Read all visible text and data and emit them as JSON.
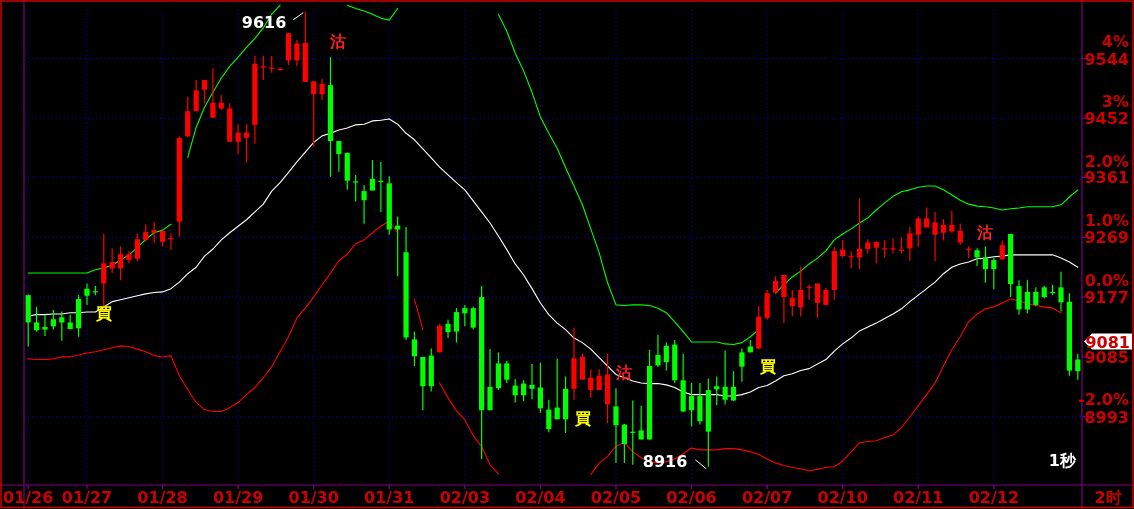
{
  "chart_data": {
    "type": "candlestick",
    "grid": true,
    "categories": [
      "01/26",
      null,
      null,
      null,
      null,
      null,
      null,
      "01/27",
      null,
      null,
      null,
      null,
      null,
      null,
      null,
      null,
      "01/28",
      null,
      null,
      null,
      null,
      null,
      null,
      null,
      null,
      "01/29",
      null,
      null,
      null,
      null,
      null,
      null,
      null,
      null,
      "01/30",
      null,
      null,
      null,
      null,
      null,
      null,
      null,
      null,
      "01/31",
      null,
      null,
      null,
      null,
      null,
      null,
      null,
      null,
      "02/03",
      null,
      null,
      null,
      null,
      null,
      null,
      null,
      null,
      "02/04",
      null,
      null,
      null,
      null,
      null,
      null,
      null,
      null,
      "02/05",
      null,
      null,
      null,
      null,
      null,
      null,
      null,
      null,
      "02/06",
      null,
      null,
      null,
      null,
      null,
      null,
      null,
      null,
      "02/07",
      null,
      null,
      null,
      null,
      null,
      null,
      null,
      null,
      "02/10",
      null,
      null,
      null,
      null,
      null,
      null,
      null,
      null,
      "02/11",
      null,
      null,
      null,
      null,
      null,
      null,
      null,
      null,
      "02/12",
      null,
      null,
      null,
      null,
      null,
      null,
      null,
      null,
      null,
      null
    ],
    "ohlc": [
      [
        9180,
        9181,
        9101,
        9138
      ],
      [
        9138,
        9162,
        9124,
        9126
      ],
      [
        9131,
        9150,
        9117,
        9127
      ],
      [
        9143,
        9157,
        9127,
        9132
      ],
      [
        9146,
        9155,
        9110,
        9138
      ],
      [
        9138,
        9150,
        9127,
        9128
      ],
      [
        9174,
        9180,
        9116,
        9129
      ],
      [
        9190,
        9198,
        9165,
        9179
      ],
      [
        9185,
        9194,
        9180,
        9186
      ],
      [
        9198,
        9275,
        9150,
        9229
      ],
      [
        9221,
        9252,
        9214,
        9231
      ],
      [
        9221,
        9255,
        9203,
        9243
      ],
      [
        9234,
        9248,
        9229,
        9243
      ],
      [
        9236,
        9275,
        9232,
        9266
      ],
      [
        9265,
        9289,
        9262,
        9277
      ],
      [
        9276,
        9293,
        9260,
        9280
      ],
      [
        9262,
        9279,
        9255,
        9279
      ],
      [
        9266,
        9275,
        9250,
        9268
      ],
      [
        9293,
        9424,
        9270,
        9422
      ],
      [
        9424,
        9485,
        9424,
        9463
      ],
      [
        9463,
        9511,
        9463,
        9495
      ],
      [
        9496,
        9511,
        9475,
        9511
      ],
      [
        9453,
        9529,
        9453,
        9476
      ],
      [
        9467,
        9488,
        9465,
        9476
      ],
      [
        9416,
        9475,
        9416,
        9467
      ],
      [
        9416,
        9443,
        9397,
        9430
      ],
      [
        9422,
        9443,
        9384,
        9430
      ],
      [
        9442,
        9548,
        9413,
        9536
      ],
      [
        9530,
        9548,
        9511,
        9532
      ],
      [
        9529,
        9548,
        9522,
        9530
      ],
      [
        9527,
        9530,
        9525,
        9528
      ],
      [
        9541,
        9583,
        9534,
        9583
      ],
      [
        9541,
        9573,
        9532,
        9567
      ],
      [
        9508,
        9616,
        9508,
        9568
      ],
      [
        9489,
        9509,
        9409,
        9509
      ],
      [
        9489,
        9513,
        9480,
        9505
      ],
      [
        9503,
        9546,
        9362,
        9417
      ],
      [
        9417,
        9417,
        9370,
        9397
      ],
      [
        9399,
        9399,
        9342,
        9356
      ],
      [
        9355,
        9365,
        9324,
        9354
      ],
      [
        9340,
        9349,
        9290,
        9326
      ],
      [
        9359,
        9388,
        9341,
        9341
      ],
      [
        9356,
        9385,
        9308,
        9355
      ],
      [
        9352,
        9363,
        9273,
        9281
      ],
      [
        9287,
        9301,
        9209,
        9281
      ],
      [
        9246,
        9285,
        9111,
        9115
      ],
      [
        9112,
        9124,
        9071,
        9086
      ],
      [
        9085,
        9085,
        9003,
        9040
      ],
      [
        9087,
        9098,
        9032,
        9040
      ],
      [
        9092,
        9136,
        9092,
        9133
      ],
      [
        9136,
        9142,
        9114,
        9123
      ],
      [
        9154,
        9160,
        9107,
        9124
      ],
      [
        9160,
        9165,
        9132,
        9152
      ],
      [
        9160,
        9162,
        9127,
        9130
      ],
      [
        9177,
        9194,
        8928,
        9003
      ],
      [
        9039,
        9097,
        9003,
        9003
      ],
      [
        9075,
        9092,
        9034,
        9037
      ],
      [
        9075,
        9079,
        9045,
        9050
      ],
      [
        9041,
        9051,
        9015,
        9026
      ],
      [
        9044,
        9049,
        9017,
        9026
      ],
      [
        9042,
        9074,
        9020,
        9036
      ],
      [
        9038,
        9076,
        8999,
        9006
      ],
      [
        9004,
        9019,
        8969,
        8974
      ],
      [
        9007,
        9082,
        8989,
        8989
      ],
      [
        9036,
        9055,
        8968,
        8989
      ],
      [
        9036,
        9130,
        9019,
        9083
      ],
      [
        9050,
        9090,
        9050,
        9085
      ],
      [
        9034,
        9066,
        9022,
        9053
      ],
      [
        9034,
        9066,
        9034,
        9056
      ],
      [
        9012,
        9090,
        8983,
        9058
      ],
      [
        9009,
        9037,
        8922,
        8980
      ],
      [
        8981,
        8982,
        8922,
        8951
      ],
      [
        8970,
        9018,
        8919,
        8969
      ],
      [
        8972,
        9010,
        8958,
        8958
      ],
      [
        9071,
        9096,
        8958,
        8958
      ],
      [
        9088,
        9119,
        9070,
        9072
      ],
      [
        9102,
        9107,
        9064,
        9077
      ],
      [
        9104,
        9111,
        9045,
        9049
      ],
      [
        9049,
        9090,
        9001,
        9001
      ],
      [
        9025,
        9045,
        8978,
        9003
      ],
      [
        9025,
        9045,
        8981,
        8986
      ],
      [
        9034,
        9052,
        8916,
        8970
      ],
      [
        9040,
        9055,
        9011,
        9035
      ],
      [
        9039,
        9095,
        9012,
        9019
      ],
      [
        9039,
        9063,
        9017,
        9018
      ],
      [
        9092,
        9098,
        9047,
        9070
      ],
      [
        9101,
        9111,
        9092,
        9092
      ],
      [
        9098,
        9163,
        9098,
        9147
      ],
      [
        9145,
        9188,
        9142,
        9183
      ],
      [
        9184,
        9209,
        9183,
        9202
      ],
      [
        9177,
        9211,
        9137,
        9211
      ],
      [
        9163,
        9188,
        9147,
        9176
      ],
      [
        9161,
        9224,
        9147,
        9188
      ],
      [
        9192,
        9196,
        9173,
        9193
      ],
      [
        9168,
        9198,
        9145,
        9198
      ],
      [
        9165,
        9191,
        9165,
        9188
      ],
      [
        9188,
        9254,
        9173,
        9248
      ],
      [
        9240,
        9265,
        9238,
        9250
      ],
      [
        9239,
        9247,
        9221,
        9240
      ],
      [
        9238,
        9329,
        9220,
        9251
      ],
      [
        9251,
        9266,
        9244,
        9261
      ],
      [
        9253,
        9262,
        9229,
        9262
      ],
      [
        9251,
        9265,
        9238,
        9252
      ],
      [
        9251,
        9267,
        9244,
        9252
      ],
      [
        9249,
        9269,
        9244,
        9250
      ],
      [
        9252,
        9285,
        9233,
        9275
      ],
      [
        9273,
        9301,
        9255,
        9298
      ],
      [
        9284,
        9315,
        9284,
        9298
      ],
      [
        9273,
        9308,
        9232,
        9292
      ],
      [
        9276,
        9297,
        9264,
        9288
      ],
      [
        9278,
        9310,
        9276,
        9288
      ],
      [
        9261,
        9290,
        9257,
        9279
      ],
      [
        9250,
        9255,
        9237,
        9251
      ],
      [
        9249,
        9252,
        9225,
        9238
      ],
      [
        9238,
        9255,
        9199,
        9220
      ],
      [
        9234,
        9238,
        9189,
        9220
      ],
      [
        9235,
        9264,
        9235,
        9257
      ],
      [
        9274,
        9274,
        9177,
        9197
      ],
      [
        9194,
        9203,
        9150,
        9158
      ],
      [
        9185,
        9203,
        9152,
        9158
      ],
      [
        9185,
        9192,
        9163,
        9165
      ],
      [
        9192,
        9194,
        9175,
        9177
      ],
      [
        9185,
        9196,
        9180,
        9184
      ],
      [
        9192,
        9216,
        9155,
        9169
      ],
      [
        9170,
        9183,
        9056,
        9064
      ],
      [
        9081,
        9090,
        9050,
        9063
      ]
    ],
    "colors": [
      "#00ff00",
      "#00ff00",
      "#00ff00",
      "#00ff00",
      "#00ff00",
      "#00ff00",
      "#00ff00",
      "#00ff00",
      "#00ff00",
      "#ff0000",
      "#ff0000",
      "#ff0000",
      "#ff0000",
      "#ff0000",
      "#ff0000",
      "#ff0000",
      "#ff0000",
      "#ff0000",
      "#ff0000",
      "#ff0000",
      "#ff0000",
      "#ff0000",
      "#ff0000",
      "#ff0000",
      "#ff0000",
      "#ff0000",
      "#ff0000",
      "#ff0000",
      "#ff0000",
      "#ff0000",
      "#ff0000",
      "#ff0000",
      "#ff0000",
      "#ff0000",
      "#ff0000",
      "#ff0000",
      "#00ff00",
      "#00ff00",
      "#00ff00",
      "#00ff00",
      "#00ff00",
      "#00ff00",
      "#00ff00",
      "#00ff00",
      "#00ff00",
      "#00ff00",
      "#00ff00",
      "#00ff00",
      "#00ff00",
      "#ff0000",
      "#00ff00",
      "#00ff00",
      "#00ff00",
      "#00ff00",
      "#00ff00",
      "#00ff00",
      "#00ff00",
      "#00ff00",
      "#00ff00",
      "#00ff00",
      "#00ff00",
      "#00ff00",
      "#00ff00",
      "#00ff00",
      "#00ff00",
      "#ff0000",
      "#ff0000",
      "#ff0000",
      "#ff0000",
      "#ff0000",
      "#00ff00",
      "#00ff00",
      "#00ff00",
      "#00ff00",
      "#00ff00",
      "#00ff00",
      "#00ff00",
      "#00ff00",
      "#00ff00",
      "#00ff00",
      "#00ff00",
      "#00ff00",
      "#00ff00",
      "#00ff00",
      "#00ff00",
      "#00ff00",
      "#00ff00",
      "#ff0000",
      "#ff0000",
      "#ff0000",
      "#ff0000",
      "#ff0000",
      "#ff0000",
      "#ff0000",
      "#ff0000",
      "#ff0000",
      "#ff0000",
      "#ff0000",
      "#ff0000",
      "#ff0000",
      "#ff0000",
      "#ff0000",
      "#ff0000",
      "#ff0000",
      "#ff0000",
      "#ff0000",
      "#ff0000",
      "#ff0000",
      "#ff0000",
      "#ff0000",
      "#ff0000",
      "#ff0000",
      "#ff0000",
      "#00ff00",
      "#00ff00",
      "#00ff00",
      "#ff0000",
      "#00ff00",
      "#00ff00",
      "#00ff00",
      "#00ff00",
      "#00ff00",
      "#00ff00",
      "#00ff00",
      "#00ff00",
      "#00ff00"
    ],
    "value_labels": [
      null,
      null,
      null,
      null,
      null,
      null,
      null,
      null,
      "買",
      null,
      null,
      null,
      null,
      null,
      null,
      null,
      null,
      null,
      null,
      null,
      null,
      null,
      null,
      null,
      null,
      null,
      null,
      null,
      null,
      null,
      null,
      null,
      null,
      null,
      null,
      null,
      "沽",
      null,
      null,
      null,
      null,
      null,
      null,
      null,
      null,
      null,
      null,
      null,
      null,
      null,
      null,
      null,
      null,
      null,
      null,
      null,
      null,
      null,
      null,
      null,
      null,
      null,
      null,
      null,
      null,
      "買",
      null,
      null,
      null,
      null,
      "沽",
      null,
      null,
      null,
      null,
      null,
      null,
      null,
      null,
      null,
      null,
      null,
      null,
      null,
      null,
      null,
      null,
      "買",
      null,
      null,
      null,
      null,
      null,
      null,
      null,
      null,
      null,
      null,
      null,
      null,
      null,
      null,
      null,
      null,
      null,
      null,
      null,
      null,
      null,
      null,
      null,
      null,
      null,
      "沽",
      null,
      null,
      null,
      null,
      null,
      null,
      null,
      null,
      null,
      null,
      null,
      null
    ],
    "series": [
      {
        "type": "line",
        "color": "#00ff00",
        "values": [
          9214,
          9214,
          9214,
          9214,
          9214,
          9214,
          9214,
          9214,
          9219,
          9222,
          9226,
          9234,
          9242,
          9253,
          9266,
          9276,
          9280,
          9289,
          null,
          9392,
          9438,
          9469,
          9492,
          9514,
          9532,
          9546,
          9561,
          9575,
          9591,
          9612,
          9626,
          null,
          null,
          null,
          null,
          null,
          null,
          null,
          9626,
          9621,
          9617,
          9612,
          9606,
          9603,
          9621,
          null,
          null,
          null,
          null,
          null,
          null,
          null,
          null,
          null,
          null,
          null,
          9612,
          9586,
          9552,
          9525,
          9492,
          9454,
          9429,
          9406,
          9376,
          9348,
          9319,
          9282,
          9245,
          9199,
          9165,
          9164,
          9165,
          9165,
          9164,
          9160,
          9153,
          9139,
          9124,
          9108,
          9108,
          9108,
          9108,
          9105,
          9104,
          9107,
          9116,
          9127,
          null,
          9183,
          9196,
          9208,
          9217,
          9228,
          9237,
          9248,
          9265,
          9274,
          9282,
          9291,
          9299,
          9311,
          9322,
          9332,
          9339,
          9342,
          9346,
          9348,
          9348,
          9342,
          9334,
          9326,
          9320,
          9317,
          9316,
          9314,
          9311,
          9313,
          9314,
          9316,
          9316,
          9316,
          9316,
          9319,
          9331,
          9342
        ]
      },
      {
        "type": "line",
        "color": "#ffffff",
        "values": [
          9148,
          9150,
          9150,
          9151,
          9151,
          9153,
          9153,
          9154,
          9154,
          9162,
          9170,
          9173,
          9176,
          9179,
          9182,
          9184,
          9185,
          9190,
          9200,
          9213,
          9223,
          9240,
          9251,
          9265,
          9276,
          9286,
          9296,
          9308,
          9320,
          9340,
          9353,
          9369,
          9385,
          9400,
          9415,
          9425,
          9429,
          9434,
          9437,
          9442,
          9443,
          9448,
          9449,
          9451,
          9443,
          9429,
          9419,
          9405,
          9391,
          9377,
          9365,
          9353,
          9342,
          9325,
          9308,
          9291,
          9271,
          9250,
          9228,
          9211,
          9190,
          9168,
          9150,
          9137,
          9127,
          9114,
          9107,
          9097,
          9084,
          9071,
          9058,
          9053,
          9048,
          9045,
          9044,
          9044,
          9042,
          9038,
          9031,
          9027,
          9027,
          9027,
          9027,
          9025,
          9025,
          9027,
          9031,
          9038,
          9041,
          9048,
          9056,
          9059,
          9064,
          9067,
          9074,
          9081,
          9094,
          9105,
          9114,
          9125,
          9131,
          9137,
          9144,
          9151,
          9159,
          9170,
          9180,
          9190,
          9200,
          9213,
          9223,
          9228,
          9231,
          9236,
          9237,
          9239,
          9240,
          9242,
          9242,
          9242,
          9242,
          9242,
          9242,
          9237,
          9231,
          9223
        ]
      },
      {
        "type": "line",
        "color": "#ff0000",
        "values": [
          9082,
          9081,
          9081,
          9082,
          9085,
          9085,
          9088,
          9091,
          9093,
          9096,
          9099,
          9102,
          9101,
          9097,
          9093,
          9087,
          9085,
          9087,
          9056,
          9035,
          9015,
          9004,
          9001,
          9001,
          9007,
          9015,
          9027,
          9038,
          9053,
          9070,
          9093,
          9116,
          9145,
          9160,
          9177,
          9196,
          9214,
          9233,
          9243,
          9259,
          9265,
          9276,
          9286,
          9294,
          9276,
          null,
          9174,
          9127,
          null,
          9045,
          9022,
          9002,
          8988,
          8964,
          8947,
          8919,
          8905,
          null,
          null,
          null,
          null,
          null,
          null,
          null,
          null,
          null,
          null,
          8904,
          8922,
          8932,
          8948,
          8953,
          8939,
          8930,
          8924,
          8922,
          8924,
          8928,
          8936,
          8945,
          8942,
          8942,
          8942,
          8944,
          8944,
          8942,
          8939,
          8935,
          8928,
          8922,
          8918,
          8915,
          8913,
          8910,
          8912,
          8915,
          8916,
          8925,
          8939,
          8953,
          8955,
          8956,
          8961,
          8965,
          8976,
          8993,
          9010,
          9027,
          9045,
          9071,
          9096,
          9116,
          9139,
          9151,
          9159,
          9162,
          9168,
          9174,
          9171,
          9167,
          9164,
          9162,
          9160,
          9153,
          null,
          null
        ]
      }
    ],
    "ylim": [
      8888,
      9634
    ],
    "yticks": [
      8993,
      9085,
      9177,
      9269,
      9361,
      9452,
      9544
    ],
    "y2lim": [
      -3.15,
      4.98
    ],
    "y2ticks": [
      {
        "value": -2,
        "label": "-2.0%"
      },
      {
        "value": 0,
        "label": "0.0%"
      },
      {
        "value": 1,
        "label": "1.0%"
      },
      {
        "value": 2,
        "label": "2.0%"
      },
      {
        "value": 3,
        "label": "3%"
      },
      {
        "value": 4,
        "label": "4%"
      }
    ],
    "xlabel": "2时",
    "annotations": [
      "9616",
      "8916",
      "9081",
      "1秒"
    ]
  }
}
